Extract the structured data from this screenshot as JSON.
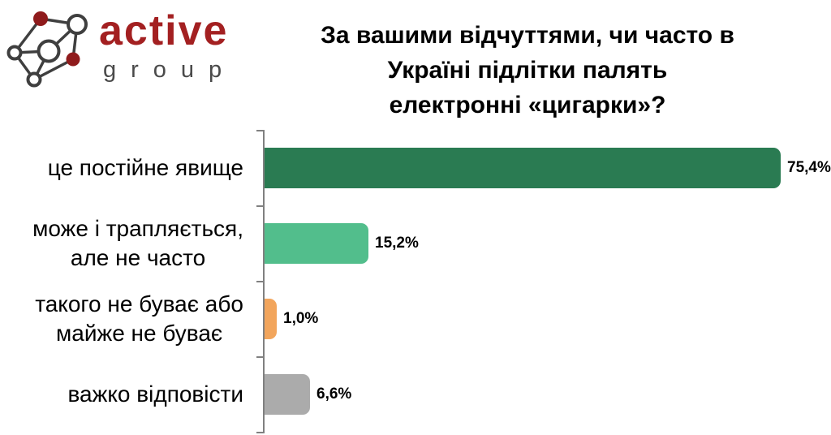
{
  "brand": {
    "primary": "active",
    "secondary": "group",
    "accent_color": "#a32021",
    "icon": "network-graph-icon",
    "icon_node_color": "#8f1b1c",
    "icon_line_color": "#3f3f3f"
  },
  "title": {
    "full": "За вашими відчуттями, чи часто в Україні підлітки палять електронні «цигарки»?",
    "lines": [
      "За вашими відчуттями, чи часто в",
      "Україні підлітки палять",
      "електронні «цигарки»?"
    ]
  },
  "chart_data": {
    "type": "bar",
    "orientation": "horizontal",
    "title": "За вашими відчуттями, чи часто в Україні підлітки палять електронні «цигарки»?",
    "categories": [
      "це постійне явище",
      "може і трапляється, але не часто",
      "такого не буває або майже не буває",
      "важко відповісти"
    ],
    "category_lines": [
      [
        "це постійне явище"
      ],
      [
        "може і трапляється,",
        "але не часто"
      ],
      [
        "такого не буває або",
        "майже не буває"
      ],
      [
        "важко відповісти"
      ]
    ],
    "values": [
      75.4,
      15.2,
      1.0,
      6.6
    ],
    "value_labels": [
      "75,4%",
      "15,2%",
      "1,0%",
      "6,6%"
    ],
    "bar_colors": [
      "#2a7b52",
      "#52be8c",
      "#f2a55c",
      "#ababab"
    ],
    "xlim": [
      0,
      80
    ],
    "grid": false,
    "legend": false,
    "axis_color": "#808080",
    "value_decimal_separator": ","
  }
}
